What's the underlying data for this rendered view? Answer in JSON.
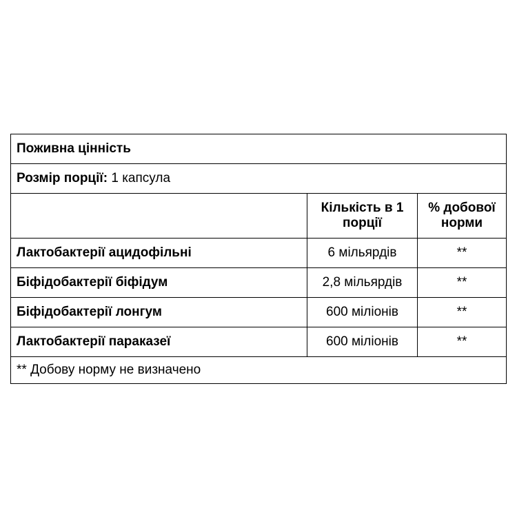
{
  "table": {
    "title": "Поживна цінність",
    "serving_label": "Розмір порції:",
    "serving_value": " 1 капсула",
    "columns": {
      "name": "",
      "amount": "Кількість в 1 порції",
      "daily": "% добової норми"
    },
    "rows": [
      {
        "name": "Лактобактерії ацидофільні",
        "amount": "6 мільярдів",
        "daily": "**"
      },
      {
        "name": "Біфідобактерії біфідум",
        "amount": "2,8 мільярдів",
        "daily": "**"
      },
      {
        "name": "Біфідобактерії лонгум",
        "amount": "600 мілionів",
        "daily": "**"
      },
      {
        "name": "Лактобактерії параказеї",
        "amount": "600 мілионів",
        "daily": "**"
      }
    ],
    "rows_fixed": [
      {
        "name": "Лактобактерії ацидофільні",
        "amount": "6 мільярдів",
        "daily": "**"
      },
      {
        "name": "Біфідобактерії біфідум",
        "amount": "2,8 мільярдів",
        "daily": "**"
      },
      {
        "name": "Біфідобактерії лонгум",
        "amount": "600 міліонів",
        "daily": "**"
      },
      {
        "name": "Лактобактерії параказеї",
        "amount": "600 міліонів",
        "daily": "**"
      }
    ],
    "footnote": "** Добову норму не визначено"
  },
  "styling": {
    "border_color": "#000000",
    "background_color": "#ffffff",
    "text_color": "#000000",
    "font_size_base": 19,
    "cell_padding": 10,
    "col_widths": {
      "name": 430,
      "amount": 160,
      "daily": "remaining"
    }
  }
}
